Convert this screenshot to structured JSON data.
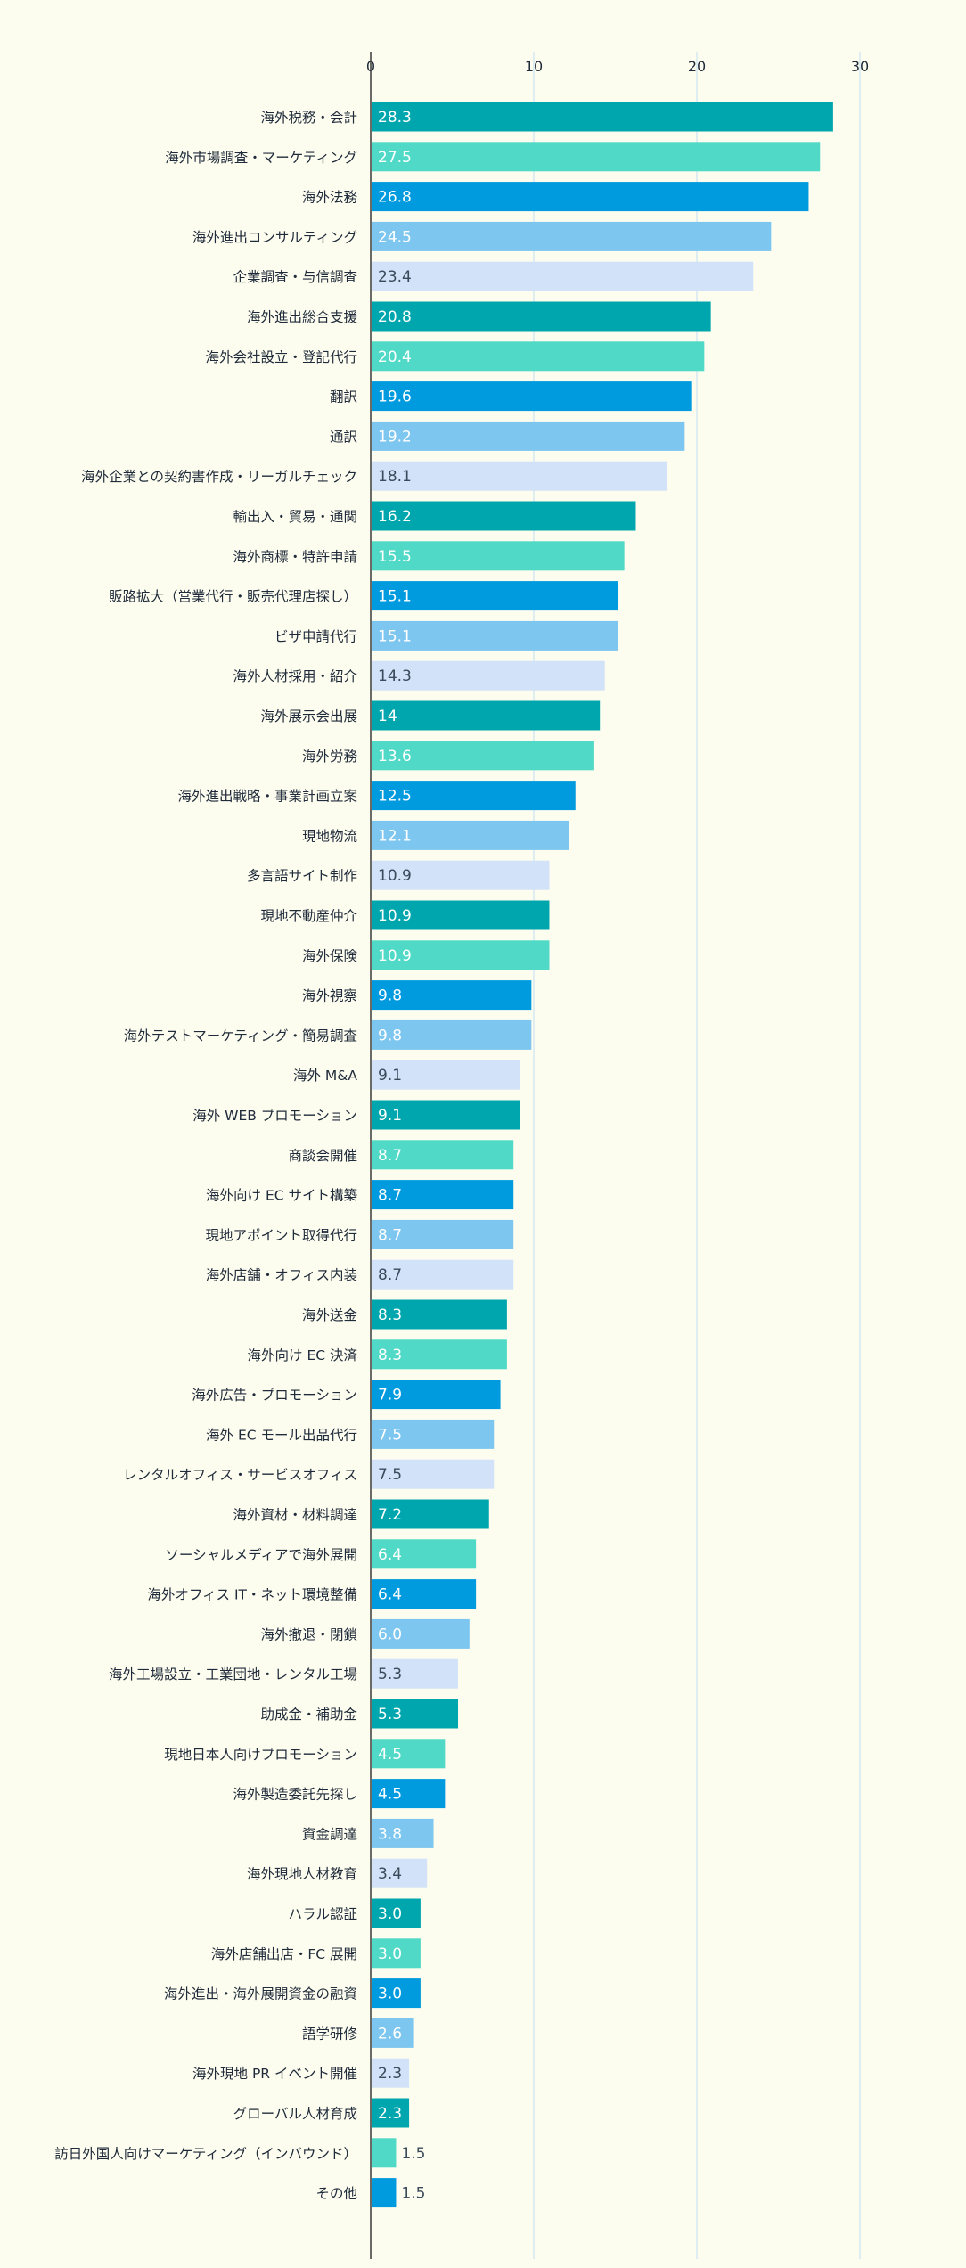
{
  "chart_data": {
    "type": "bar",
    "orientation": "horizontal",
    "title": "",
    "xlabel": "",
    "ylabel": "",
    "xlim": [
      0,
      30
    ],
    "x_ticks": [
      0,
      10,
      20,
      30
    ],
    "grid": "vertical gridlines at each tick",
    "legend": "none",
    "bar_color_cycle": [
      "#00a6ad",
      "#4fd9c6",
      "#009ade",
      "#7dc6ef",
      "#d2e2f8"
    ],
    "categories": [
      "海外税務・会計",
      "海外市場調査・マーケティング",
      "海外法務",
      "海外進出コンサルティング",
      "企業調査・与信調査",
      "海外進出総合支援",
      "海外会社設立・登記代行",
      "翻訳",
      "通訳",
      "海外企業との契約書作成・リーガルチェック",
      "輸出入・貿易・通関",
      "海外商標・特許申請",
      "販路拡大（営業代行・販売代理店探し）",
      "ビザ申請代行",
      "海外人材採用・紹介",
      "海外展示会出展",
      "海外労務",
      "海外進出戦略・事業計画立案",
      "現地物流",
      "多言語サイト制作",
      "現地不動産仲介",
      "海外保険",
      "海外視察",
      "海外テストマーケティング・簡易調査",
      "海外 M&A",
      "海外 WEB プロモーション",
      "商談会開催",
      "海外向け EC サイト構築",
      "現地アポイント取得代行",
      "海外店舗・オフィス内装",
      "海外送金",
      "海外向け EC 決済",
      "海外広告・プロモーション",
      "海外 EC モール出品代行",
      "レンタルオフィス・サービスオフィス",
      "海外資材・材料調達",
      "ソーシャルメディアで海外展開",
      "海外オフィス IT・ネット環境整備",
      "海外撤退・閉鎖",
      "海外工場設立・工業団地・レンタル工場",
      "助成金・補助金",
      "現地日本人向けプロモーション",
      "海外製造委託先探し",
      "資金調達",
      "海外現地人材教育",
      "ハラル認証",
      "海外店舗出店・FC 展開",
      "海外進出・海外展開資金の融資",
      "語学研修",
      "海外現地 PR イベント開催",
      "グローバル人材育成",
      "訪日外国人向けマーケティング（インバウンド）",
      "その他"
    ],
    "values": [
      28.3,
      27.5,
      26.8,
      24.5,
      23.4,
      20.8,
      20.4,
      19.6,
      19.2,
      18.1,
      16.2,
      15.5,
      15.1,
      15.1,
      14.3,
      14,
      13.6,
      12.5,
      12.1,
      10.9,
      10.9,
      10.9,
      9.8,
      9.8,
      9.1,
      9.1,
      8.7,
      8.7,
      8.7,
      8.7,
      8.3,
      8.3,
      7.9,
      7.5,
      7.5,
      7.2,
      6.4,
      6.4,
      6.0,
      5.3,
      5.3,
      4.5,
      4.5,
      3.8,
      3.4,
      3.0,
      3.0,
      3.0,
      2.6,
      2.3,
      2.3,
      1.5,
      1.5
    ],
    "value_labels": [
      "28.3",
      "27.5",
      "26.8",
      "24.5",
      "23.4",
      "20.8",
      "20.4",
      "19.6",
      "19.2",
      "18.1",
      "16.2",
      "15.5",
      "15.1",
      "15.1",
      "14.3",
      "14",
      "13.6",
      "12.5",
      "12.1",
      "10.9",
      "10.9",
      "10.9",
      "9.8",
      "9.8",
      "9.1",
      "9.1",
      "8.7",
      "8.7",
      "8.7",
      "8.7",
      "8.3",
      "8.3",
      "7.9",
      "7.5",
      "7.5",
      "7.2",
      "6.4",
      "6.4",
      "6.0",
      "5.3",
      "5.3",
      "4.5",
      "4.5",
      "3.8",
      "3.4",
      "3.0",
      "3.0",
      "3.0",
      "2.6",
      "2.3",
      "2.3",
      "1.5",
      "1.5"
    ]
  }
}
